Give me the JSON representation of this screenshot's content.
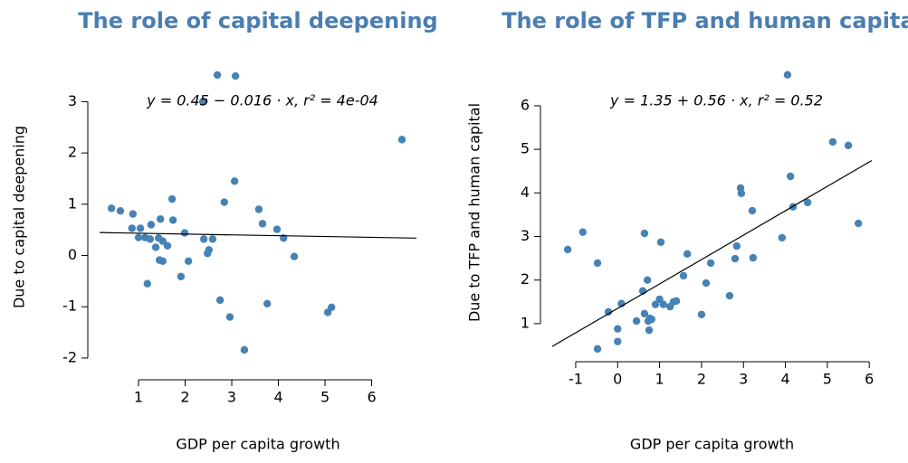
{
  "chart_data": [
    {
      "type": "scatter",
      "title": "The role of capital deepening",
      "xlabel": "GDP per capita growth",
      "ylabel": "Due to capital deepening",
      "color": "#4682b4",
      "x": [
        0.42,
        0.61,
        0.88,
        0.86,
        1.04,
        1.0,
        1.14,
        1.27,
        1.25,
        1.37,
        1.43,
        1.47,
        1.52,
        1.45,
        1.52,
        1.62,
        1.72,
        1.74,
        1.19,
        1.91,
        1.99,
        2.07,
        2.38,
        2.4,
        2.48,
        2.51,
        2.59,
        2.69,
        2.75,
        2.84,
        2.96,
        3.06,
        3.08,
        3.27,
        3.58,
        3.66,
        3.76,
        3.97,
        4.11,
        4.34,
        5.06,
        5.14,
        6.65
      ],
      "values": [
        0.92,
        0.87,
        0.81,
        0.53,
        0.53,
        0.35,
        0.35,
        0.6,
        0.32,
        0.16,
        0.34,
        0.71,
        0.28,
        -0.09,
        -0.11,
        0.19,
        1.1,
        0.69,
        -0.55,
        -0.41,
        0.44,
        -0.11,
        3.0,
        0.32,
        0.04,
        0.11,
        0.32,
        3.52,
        -0.87,
        1.04,
        -1.2,
        1.45,
        3.5,
        -1.84,
        0.9,
        0.62,
        -0.94,
        0.51,
        0.34,
        -0.02,
        -1.11,
        -1.01,
        2.26
      ],
      "xlim": [
        0.165,
        6.96
      ],
      "ylim": [
        -2.16,
        3.66
      ],
      "xticks": [
        1,
        2,
        3,
        4,
        5,
        6
      ],
      "yticks": [
        -2,
        -1,
        0,
        1,
        2,
        3
      ],
      "fit": {
        "intercept": 0.45,
        "slope": -0.016,
        "label": "y = 0.45 − 0.016 · x,  r² = 4e-04"
      }
    },
    {
      "type": "scatter",
      "title": "The role of TFP and human capital",
      "xlabel": "GDP per capita growth",
      "ylabel": "Due to TFP and human capital",
      "color": "#4682b4",
      "x": [
        -1.19,
        -0.83,
        -0.48,
        -0.48,
        -0.22,
        0.09,
        0,
        0,
        0.45,
        0.6,
        0.64,
        0.64,
        0.71,
        0.73,
        0.77,
        0.75,
        0.81,
        0.9,
        1.0,
        1.03,
        1.09,
        1.25,
        1.33,
        1.4,
        1.57,
        1.66,
        2.0,
        2.11,
        2.22,
        2.67,
        2.8,
        2.84,
        2.93,
        2.95,
        3.21,
        3.23,
        3.92,
        4.05,
        4.12,
        4.18,
        4.53,
        5.13,
        5.5,
        5.74
      ],
      "values": [
        2.7,
        3.1,
        2.39,
        0.42,
        1.27,
        1.46,
        0.88,
        0.59,
        1.06,
        1.75,
        3.07,
        1.23,
        2.0,
        1.06,
        1.12,
        0.85,
        1.1,
        1.44,
        1.56,
        2.87,
        1.44,
        1.39,
        1.5,
        1.52,
        2.1,
        2.6,
        1.21,
        1.93,
        2.39,
        1.64,
        2.49,
        2.78,
        4.11,
        3.99,
        3.59,
        2.51,
        2.97,
        6.71,
        4.38,
        3.68,
        3.78,
        5.17,
        5.09,
        3.3
      ],
      "xlim": [
        -1.56,
        6.06
      ],
      "ylim": [
        0.23,
        6.87
      ],
      "xticks": [
        -1,
        0,
        1,
        2,
        3,
        4,
        5,
        6
      ],
      "yticks": [
        1,
        2,
        3,
        4,
        5,
        6
      ],
      "fit": {
        "intercept": 1.35,
        "slope": 0.56,
        "label": "y = 1.35 + 0.56 · x,  r² = 0.52"
      }
    }
  ]
}
